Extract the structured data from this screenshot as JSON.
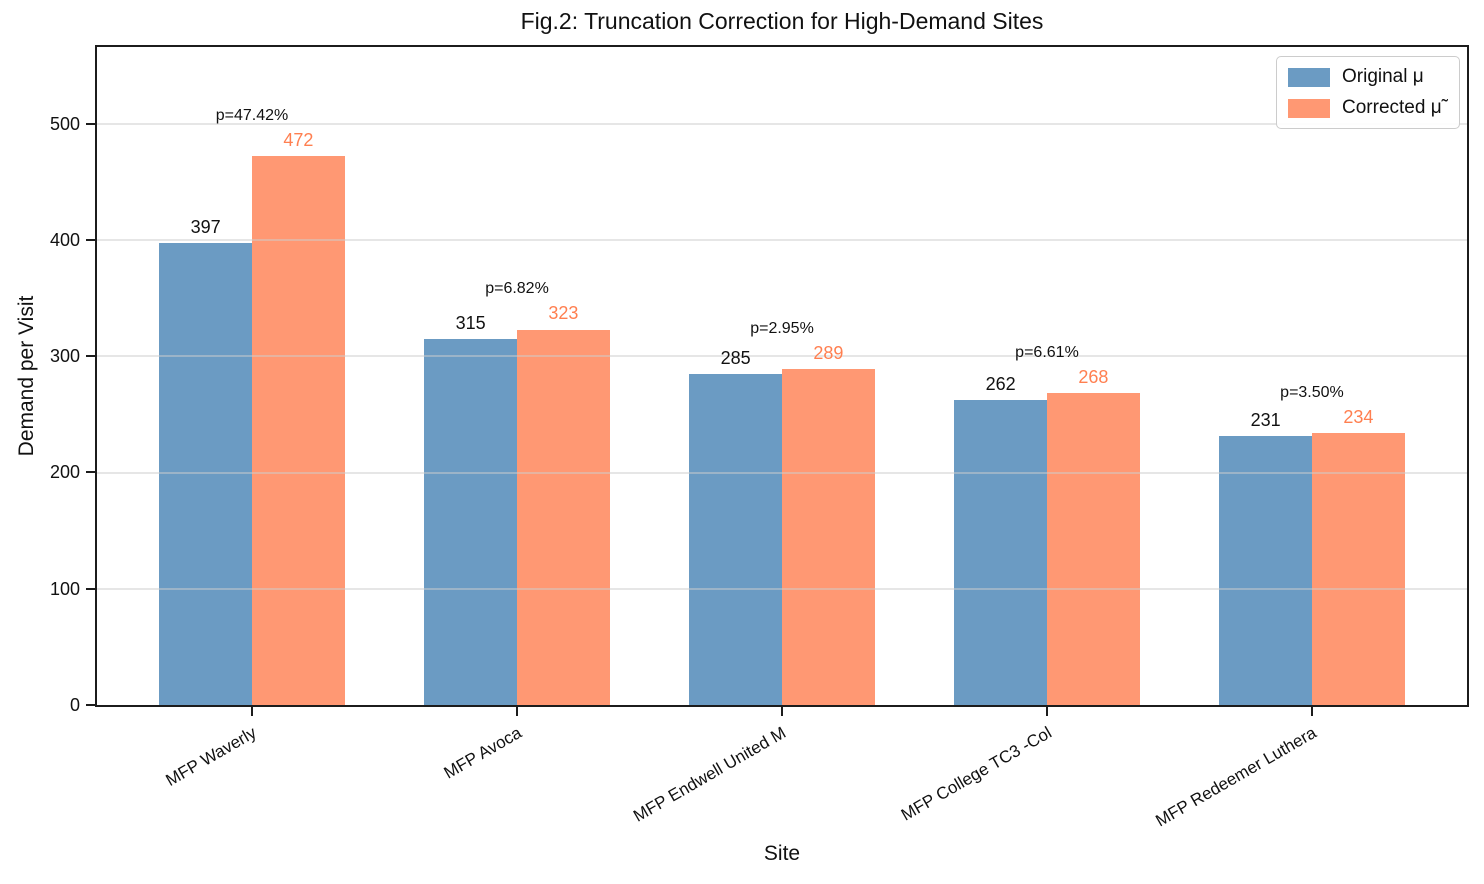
{
  "title": "Fig.2: Truncation Correction for High-Demand Sites",
  "chart_data": {
    "type": "bar",
    "title": "Fig.2: Truncation Correction for High-Demand Sites",
    "xlabel": "Site",
    "ylabel": "Demand per Visit",
    "ylim": [
      0,
      566
    ],
    "yticks": [
      0,
      100,
      200,
      300,
      400,
      500
    ],
    "grid": "horizontal-y",
    "legend_position": "upper-right",
    "categories": [
      "MFP Waverly",
      "MFP Avoca",
      "MFP Endwell United M",
      "MFP College TC3 -Col",
      "MFP Redeemer Luthera"
    ],
    "series": [
      {
        "name": "Original μ",
        "color": "#6B9BC3",
        "label_color": "#111111",
        "values": [
          397,
          315,
          285,
          262,
          231
        ]
      },
      {
        "name": "Corrected μ̃",
        "color": "#FF9873",
        "label_color": "#FF7F50",
        "values": [
          472,
          323,
          289,
          268,
          234
        ]
      }
    ],
    "annotations": [
      "p=47.42%",
      "p=6.82%",
      "p=2.95%",
      "p=6.61%",
      "p=3.50%"
    ]
  }
}
